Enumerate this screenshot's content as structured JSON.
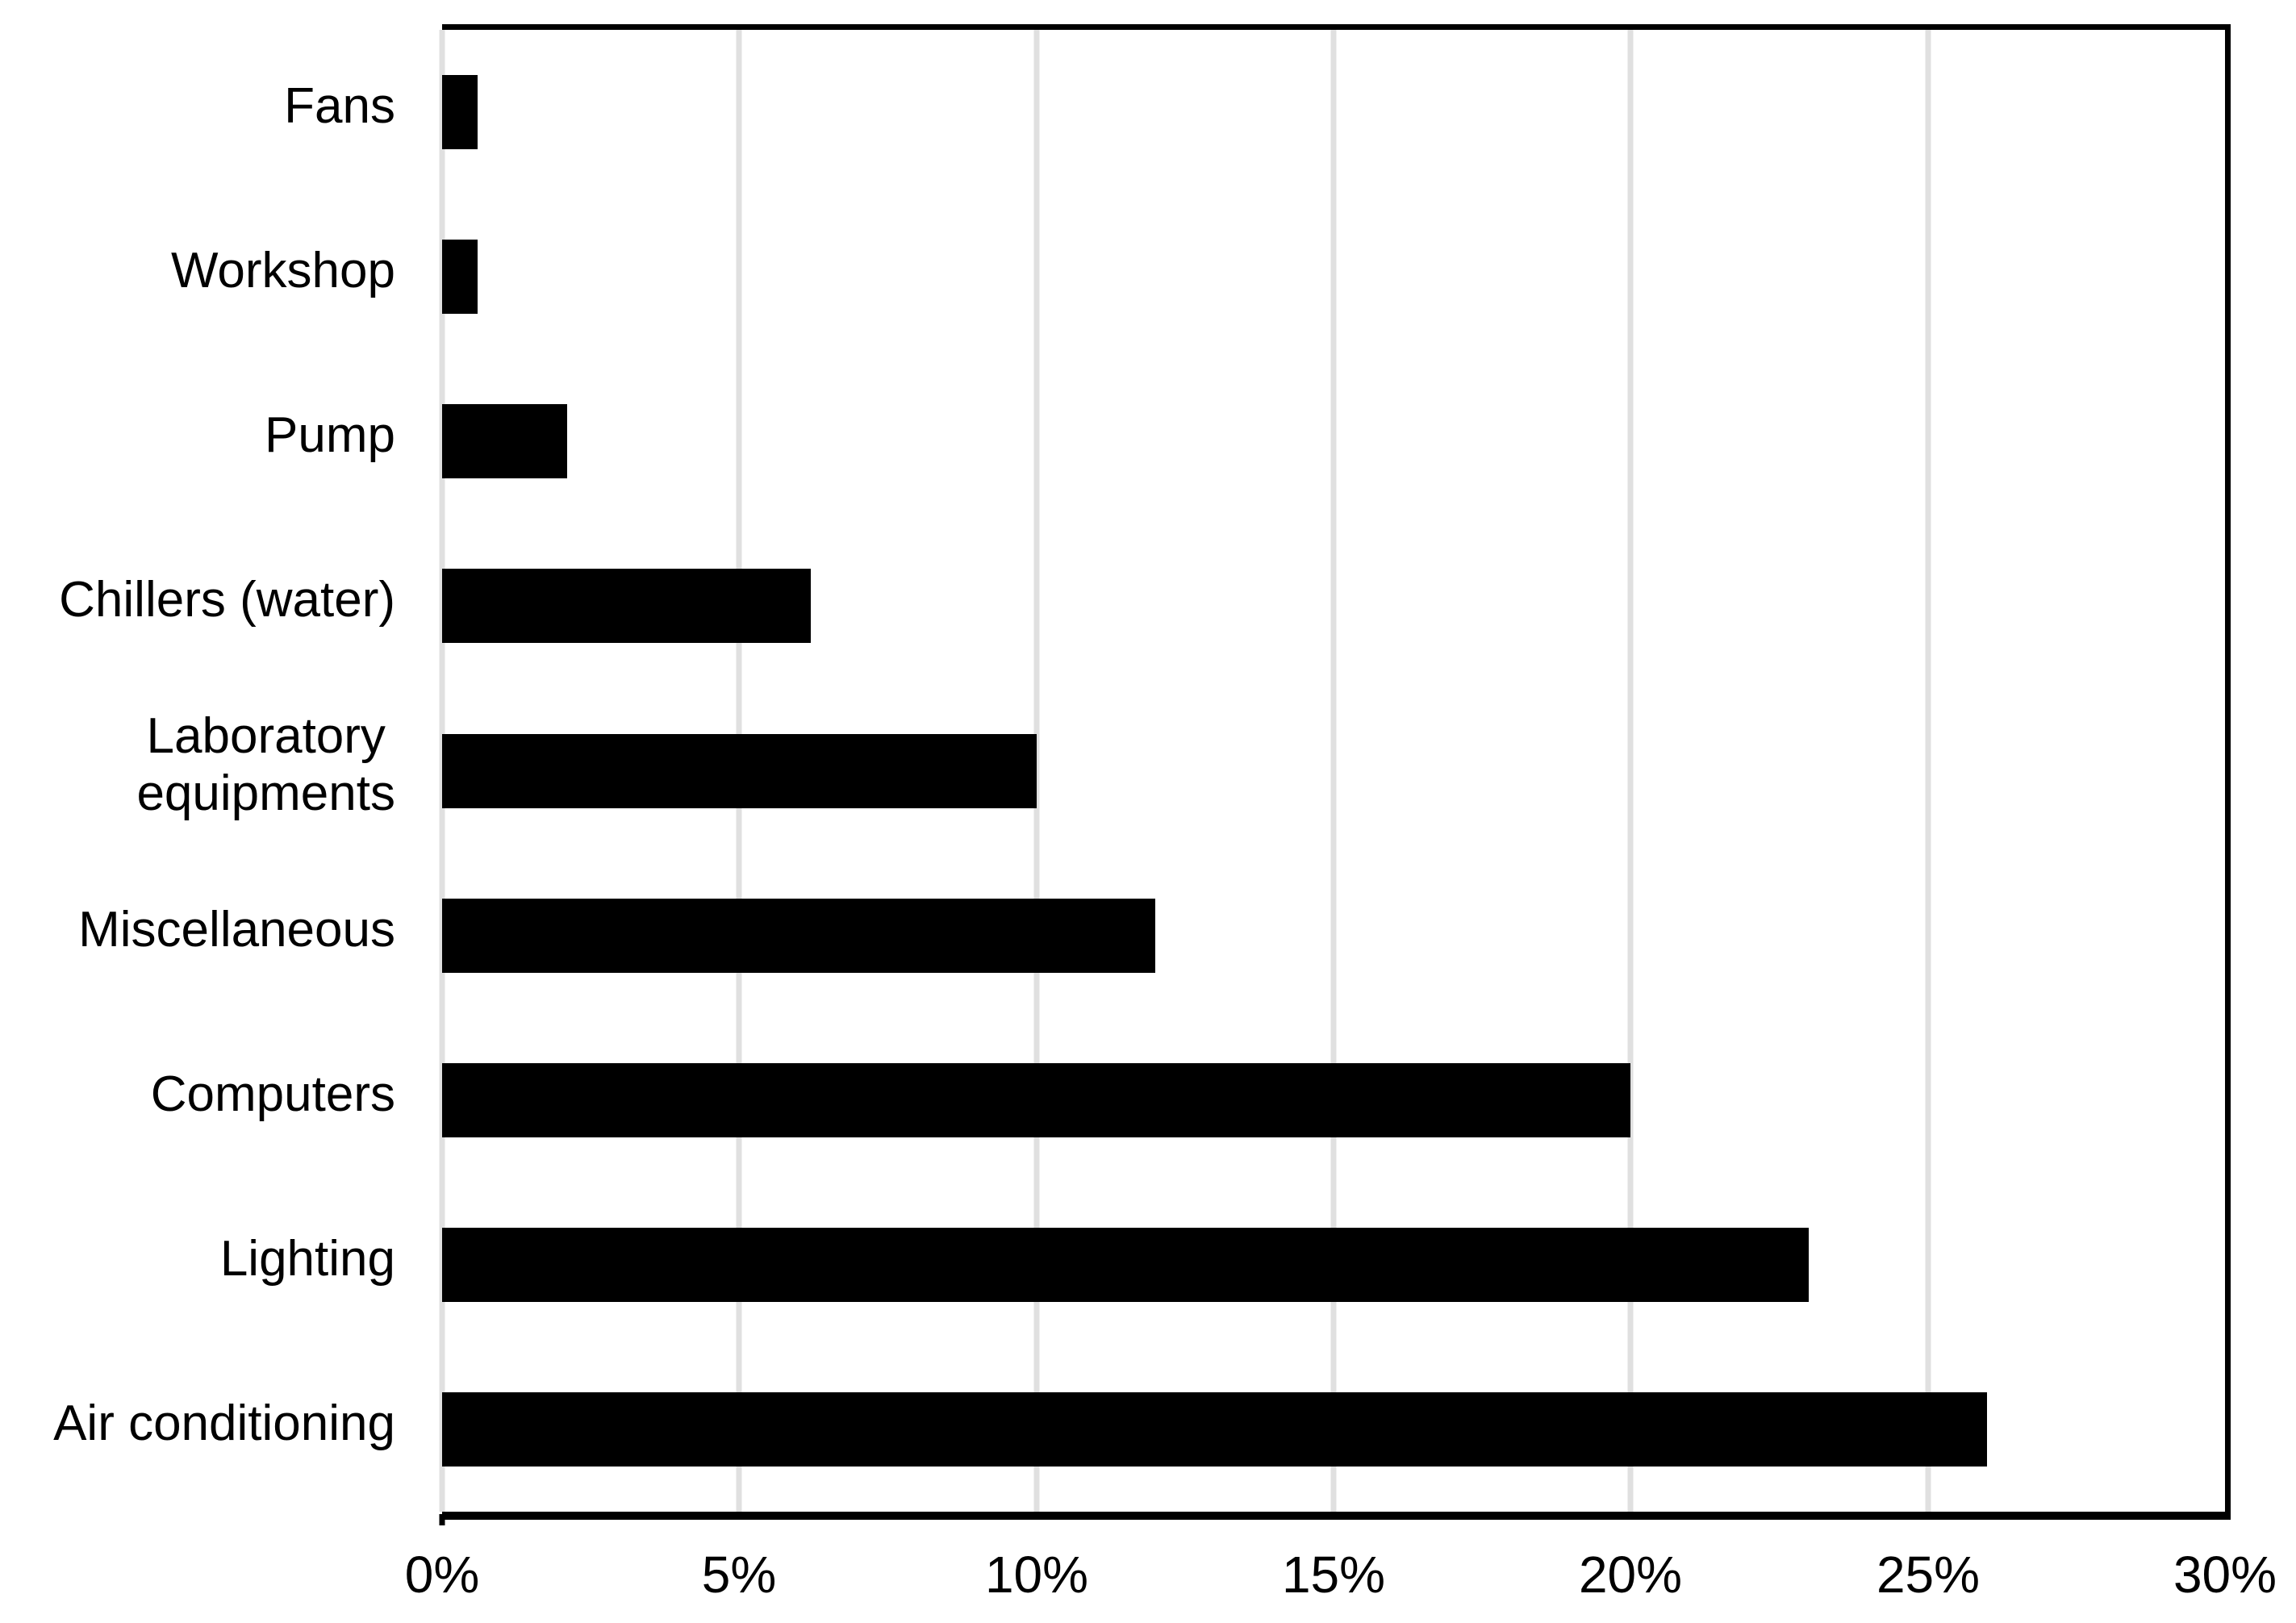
{
  "chart_data": {
    "type": "bar",
    "orientation": "horizontal",
    "title": "",
    "xlabel": "",
    "ylabel": "",
    "categories": [
      "Fans",
      "Workshop",
      "Pump",
      "Chillers (water)",
      "Laboratory equipments",
      "Miscellaneous",
      "Computers",
      "Lighting",
      "Air conditioning"
    ],
    "values": [
      0.6,
      0.6,
      2.1,
      6.2,
      10,
      12,
      20,
      23,
      26
    ],
    "unit": "%",
    "xlim": [
      0,
      30
    ],
    "x_ticks": [
      {
        "value": 0,
        "label": "0%"
      },
      {
        "value": 5,
        "label": "5%"
      },
      {
        "value": 10,
        "label": "10%"
      },
      {
        "value": 15,
        "label": "15%"
      },
      {
        "value": 20,
        "label": "20%"
      },
      {
        "value": 25,
        "label": "25%"
      },
      {
        "value": 30,
        "label": "30%"
      }
    ],
    "grid": true,
    "legend": false,
    "data_labels": false,
    "wrap_labels": {
      "Laboratory equipments": "Laboratory\nequipments"
    },
    "colors": {
      "bar": "#000000",
      "gridline": "#E0E0E0",
      "axis": "#000000",
      "background": "#FFFFFF",
      "text": "#000000"
    }
  }
}
